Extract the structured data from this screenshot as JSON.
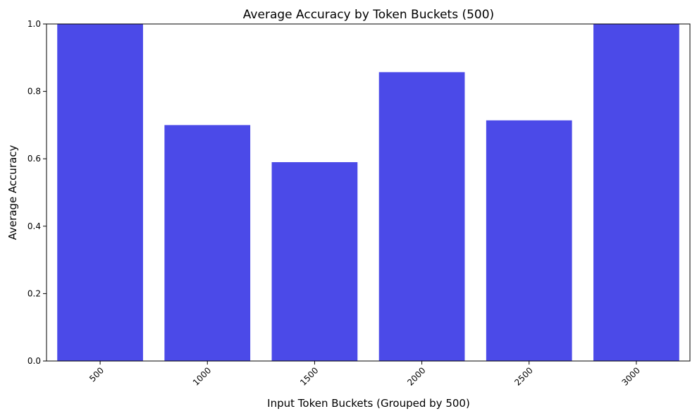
{
  "chart_data": {
    "type": "bar",
    "title": "Average Accuracy by Token Buckets (500)",
    "xlabel": "Input Token Buckets (Grouped by 500)",
    "ylabel": "Average Accuracy",
    "categories": [
      "500",
      "1000",
      "1500",
      "2000",
      "2500",
      "3000"
    ],
    "values": [
      1.0,
      0.7,
      0.59,
      0.857,
      0.714,
      1.0
    ],
    "ylim": [
      0,
      1.0
    ],
    "yticks": [
      "0.0",
      "0.2",
      "0.4",
      "0.6",
      "0.8",
      "1.0"
    ],
    "bar_color": "#4b4ae8",
    "grid": false,
    "legend": "none"
  }
}
